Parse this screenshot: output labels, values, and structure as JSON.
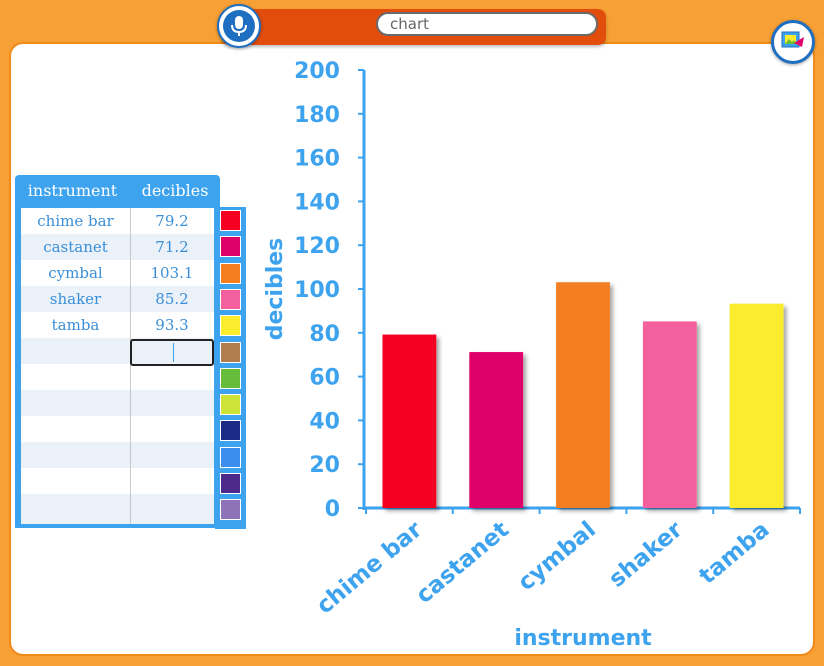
{
  "search": {
    "value": "chart"
  },
  "icons": {
    "mic": "microphone-icon",
    "corner": "share-image-icon"
  },
  "colors": {
    "accent": "#3ea3ef",
    "frame": "#f7a035",
    "bar": "#e24d0c",
    "swatches": [
      "#f60022",
      "#e0006a",
      "#f47e20",
      "#f45f9d",
      "#fbec2e",
      "#b07d4f",
      "#65bd3a",
      "#cfe238",
      "#1e2b86",
      "#3d8def",
      "#4b2a8a",
      "#8f73b8"
    ]
  },
  "table": {
    "headers": [
      "instrument",
      "decibles"
    ],
    "rows": [
      {
        "instrument": "chime bar",
        "value": "79.2"
      },
      {
        "instrument": "castanet",
        "value": "71.2"
      },
      {
        "instrument": "cymbal",
        "value": "103.1"
      },
      {
        "instrument": "shaker",
        "value": "85.2"
      },
      {
        "instrument": "tamba",
        "value": "93.3"
      }
    ]
  },
  "chart_data": {
    "type": "bar",
    "categories": [
      "chime bar",
      "castanet",
      "cymbal",
      "shaker",
      "tamba"
    ],
    "values": [
      79.2,
      71.2,
      103.1,
      85.2,
      93.3
    ],
    "bar_colors": [
      "#f60022",
      "#e0006a",
      "#f47e20",
      "#f45f9d",
      "#fbec2e"
    ],
    "xlabel": "instrument",
    "ylabel": "decibles",
    "ylim": [
      0,
      200
    ],
    "yticks": [
      0,
      20,
      40,
      60,
      80,
      100,
      120,
      140,
      160,
      180,
      200
    ],
    "grid": false
  }
}
